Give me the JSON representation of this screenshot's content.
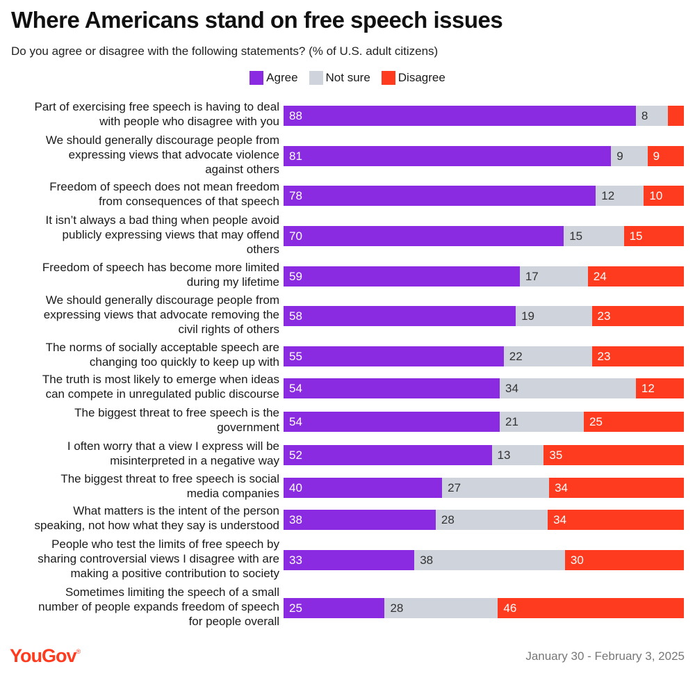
{
  "chart_data": {
    "type": "bar",
    "orientation": "horizontal",
    "stacked": true,
    "title": "Where Americans stand on free speech issues",
    "subtitle": "Do you agree or disagree with the following statements? (% of U.S. adult citizens)",
    "legend": [
      {
        "name": "Agree",
        "color": "#8a2be2"
      },
      {
        "name": "Not sure",
        "color": "#cfd3dc"
      },
      {
        "name": "Disagree",
        "color": "#ff3b1f"
      }
    ],
    "legend_position": "top-center",
    "categories": [
      [
        "Part of exercising free speech is having to deal",
        "with people who disagree with you"
      ],
      [
        "We should generally discourage people from",
        "expressing views that advocate violence",
        "against others"
      ],
      [
        "Freedom of speech does not mean freedom",
        "from consequences of that speech"
      ],
      [
        "It isn’t always a bad thing when people avoid",
        "publicly expressing views that may offend",
        "others"
      ],
      [
        "Freedom of speech has become more limited",
        "during my lifetime"
      ],
      [
        "We should generally discourage people from",
        "expressing views that advocate removing the",
        "civil rights of others"
      ],
      [
        "The norms of socially acceptable speech are",
        "changing too quickly to keep up with"
      ],
      [
        "The truth is most likely to emerge when ideas",
        "can compete in unregulated public discourse"
      ],
      [
        "The biggest threat to free speech is the",
        "government"
      ],
      [
        "I often worry that a view I express will be",
        "misinterpreted in a negative way"
      ],
      [
        "The biggest threat to free speech is social",
        "media companies"
      ],
      [
        "What matters is the intent of the person",
        "speaking, not how what they say is understood"
      ],
      [
        "People who test the limits of free speech by",
        "sharing controversial views I disagree with are",
        "making a positive contribution to society"
      ],
      [
        "Sometimes limiting the speech of a small",
        "number of people expands freedom of speech",
        "for people overall"
      ]
    ],
    "series": [
      {
        "name": "Agree",
        "values": [
          88,
          81,
          78,
          70,
          59,
          58,
          55,
          54,
          54,
          52,
          40,
          38,
          33,
          25
        ]
      },
      {
        "name": "Not sure",
        "values": [
          8,
          9,
          12,
          15,
          17,
          19,
          22,
          34,
          21,
          13,
          27,
          28,
          38,
          28
        ]
      },
      {
        "name": "Disagree",
        "values": [
          4,
          9,
          10,
          15,
          24,
          23,
          23,
          12,
          25,
          35,
          34,
          34,
          30,
          46
        ]
      }
    ],
    "value_labels_hidden": [
      [
        false,
        false,
        true
      ]
    ],
    "xlim": [
      0,
      100
    ]
  },
  "footer": {
    "logo": "YouGov",
    "date": "January 30 - February 3, 2025"
  }
}
